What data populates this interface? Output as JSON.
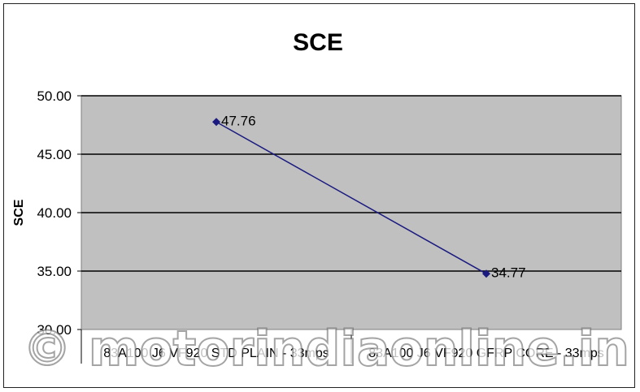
{
  "watermark": "© motorindiaonline.in",
  "chart_data": {
    "type": "line",
    "title": "SCE",
    "ylabel": "SCE",
    "xlabel": "",
    "categories": [
      "83A100 J6 VF920 STD PLAIN - 33mps",
      "83A100 J6 VF920 GFRP CORE - 33mps"
    ],
    "series": [
      {
        "values": [
          47.76,
          34.77
        ],
        "color": "#1a1a80"
      }
    ],
    "data_labels": [
      "47.76",
      "34.77"
    ],
    "ylim": [
      30,
      50
    ],
    "yticks": [
      "50.00",
      "45.00",
      "40.00",
      "35.00",
      "30.00"
    ],
    "grid": true,
    "legend": "none",
    "plot_background": "#c0c0c0"
  }
}
